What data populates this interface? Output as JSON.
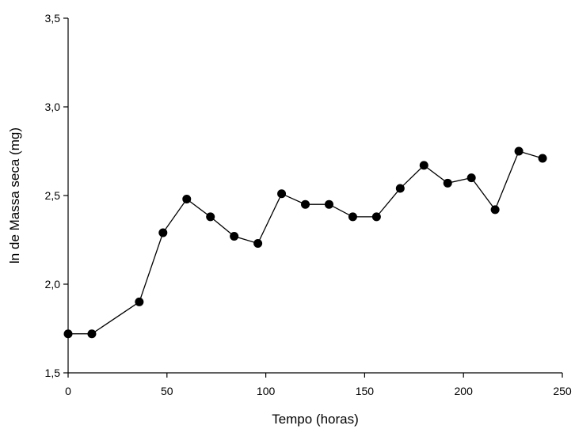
{
  "chart_data": {
    "type": "line",
    "xlabel": "Tempo (horas)",
    "ylabel": "ln de Massa seca (mg)",
    "xlim": [
      0,
      250
    ],
    "ylim": [
      1.5,
      3.5
    ],
    "x_ticks": [
      {
        "value": 0,
        "label": "0"
      },
      {
        "value": 50,
        "label": "50"
      },
      {
        "value": 100,
        "label": "100"
      },
      {
        "value": 150,
        "label": "150"
      },
      {
        "value": 200,
        "label": "200"
      },
      {
        "value": 250,
        "label": "250"
      }
    ],
    "y_ticks": [
      {
        "value": 1.5,
        "label": "1,5"
      },
      {
        "value": 2.0,
        "label": "2,0"
      },
      {
        "value": 2.5,
        "label": "2,5"
      },
      {
        "value": 3.0,
        "label": "3,0"
      },
      {
        "value": 3.5,
        "label": "3,5"
      }
    ],
    "grid": false,
    "series": [
      {
        "marker": "filled-circle",
        "color": "#000000",
        "x": [
          0,
          12,
          36,
          48,
          60,
          72,
          84,
          96,
          108,
          120,
          132,
          144,
          156,
          168,
          180,
          192,
          204,
          216,
          228,
          240
        ],
        "y": [
          1.72,
          1.72,
          1.9,
          2.29,
          2.48,
          2.38,
          2.27,
          2.23,
          2.51,
          2.45,
          2.45,
          2.38,
          2.38,
          2.54,
          2.67,
          2.57,
          2.6,
          2.42,
          2.75,
          2.71
        ]
      }
    ]
  }
}
